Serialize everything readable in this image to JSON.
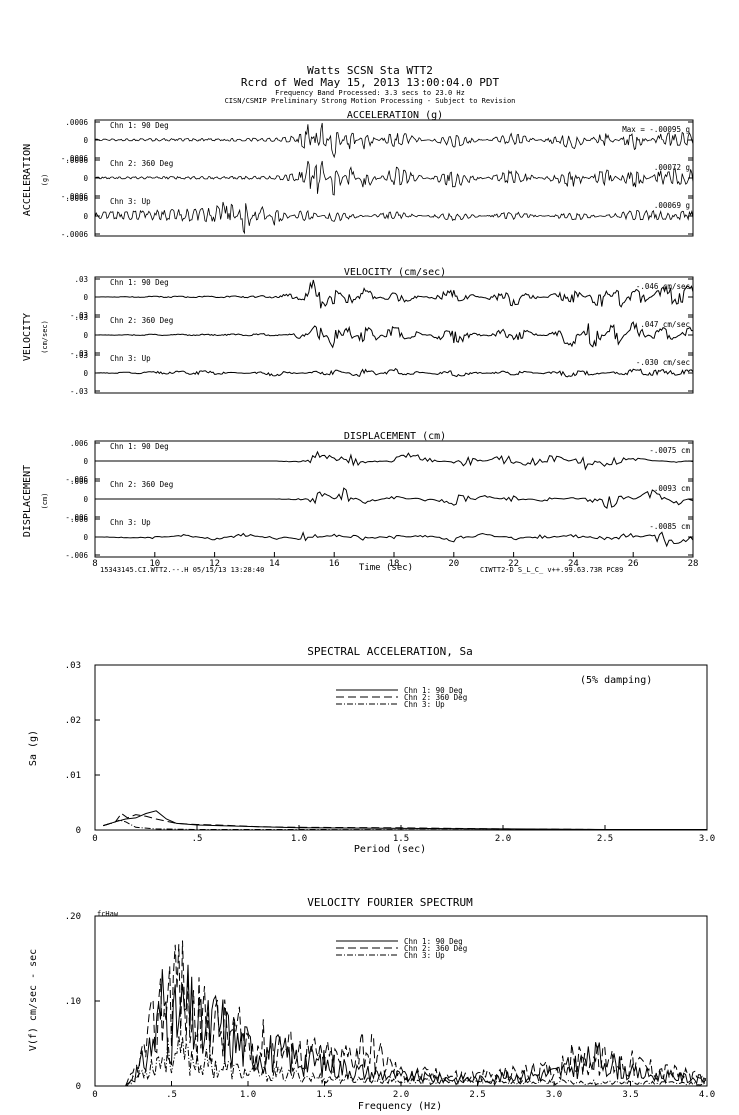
{
  "header": {
    "line1": "Watts    SCSN Sta WTT2",
    "line2": "Rcrd of Wed May 15, 2013 13:00:04.0 PDT",
    "line3": "Frequency Band Processed: 3.3 secs to 23.0 Hz",
    "line4": "CISN/CSMIP Preliminary Strong Motion Processing - Subject to Revision"
  },
  "timeseries": {
    "x_ticks": [
      "8",
      "10",
      "12",
      "14",
      "16",
      "18",
      "20",
      "22",
      "24",
      "26",
      "28"
    ],
    "x_label": "Time (sec)",
    "footer_left": "15343145.CI.WTT2.--.H 05/15/13 13:28:40",
    "footer_right": "CIWTT2-D  S_L_C_  v++.99.63.73R PC89",
    "panels": [
      {
        "title": "ACCELERATION (g)",
        "ylabel": "ACCELERATION",
        "units": "(g)",
        "channels": [
          {
            "name": "Chn 1: 90 Deg",
            "ticks": [
              ".0006",
              "0",
              "-.0006"
            ],
            "peak": "Max =  -.00095   g"
          },
          {
            "name": "Chn 2: 360 Deg",
            "ticks": [
              ".0006",
              "0",
              "-.0006"
            ],
            "peak": ".00072   g"
          },
          {
            "name": "Chn 3: Up",
            "ticks": [
              ".0006",
              "0",
              "-.0006"
            ],
            "peak": ".00069   g"
          }
        ]
      },
      {
        "title": "VELOCITY (cm/sec)",
        "ylabel": "VELOCITY",
        "units": "(cm/sec)",
        "channels": [
          {
            "name": "Chn 1: 90 Deg",
            "ticks": [
              ".03",
              "0",
              "-.03"
            ],
            "peak": "-.046   cm/sec"
          },
          {
            "name": "Chn 2: 360 Deg",
            "ticks": [
              ".03",
              "0",
              "-.03"
            ],
            "peak": ".047   cm/sec"
          },
          {
            "name": "Chn 3: Up",
            "ticks": [
              ".03",
              "0",
              "-.03"
            ],
            "peak": "-.030   cm/sec"
          }
        ]
      },
      {
        "title": "DISPLACEMENT (cm)",
        "ylabel": "DISPLACEMENT",
        "units": "(cm)",
        "channels": [
          {
            "name": "Chn 1: 90 Deg",
            "ticks": [
              ".006",
              "0",
              "-.006"
            ],
            "peak": "-.0075   cm"
          },
          {
            "name": "Chn 2: 360 Deg",
            "ticks": [
              ".006",
              "0",
              "-.006"
            ],
            "peak": ".0093   cm"
          },
          {
            "name": "Chn 3: Up",
            "ticks": [
              ".006",
              "0",
              "-.006"
            ],
            "peak": "-.0085   cm"
          }
        ]
      }
    ]
  },
  "spectral": {
    "title": "SPECTRAL ACCELERATION, Sa",
    "ylabel": "Sa (g)",
    "xlabel": "Period (sec)",
    "note": "(5% damping)",
    "x_ticks": [
      "0",
      ".5",
      "1.0",
      "1.5",
      "2.0",
      "2.5",
      "3.0"
    ],
    "y_ticks": [
      "0",
      ".01",
      ".02",
      ".03"
    ],
    "legend": [
      "Chn 1: 90 Deg",
      "Chn 2: 360 Deg",
      "Chn 3: Up"
    ]
  },
  "fourier": {
    "title": "VELOCITY FOURIER SPECTRUM",
    "ylabel": "V(f)   cm/sec - sec",
    "xlabel": "Frequency (Hz)",
    "corner_label": "fcHaw",
    "x_ticks": [
      "0",
      ".5",
      "1.0",
      "1.5",
      "2.0",
      "2.5",
      "3.0",
      "3.5",
      "4.0"
    ],
    "y_ticks": [
      "0",
      ".10",
      ".20"
    ],
    "legend": [
      "Chn 1: 90 Deg",
      "Chn 2: 360 Deg",
      "Chn 3: Up"
    ]
  },
  "chart_data": [
    {
      "type": "line",
      "title": "ACCELERATION (g)",
      "xlabel": "Time (sec)",
      "xlim": [
        8,
        28
      ],
      "ylim": [
        -0.0006,
        0.0006
      ],
      "series": [
        {
          "name": "Chn 1: 90 Deg",
          "x": [
            8,
            10,
            12,
            14,
            14.8,
            15.2,
            15.4,
            15.6,
            16,
            16.5,
            17,
            18,
            20,
            22,
            24,
            25,
            26,
            27,
            28
          ],
          "y": [
            2e-05,
            3e-05,
            3e-05,
            4e-05,
            0.0001,
            0.0004,
            -0.0005,
            0.00045,
            -0.0004,
            0.0003,
            -0.0002,
            0.0002,
            -0.00015,
            0.00015,
            -0.0002,
            0.0002,
            -0.00022,
            0.00018,
            0.00015
          ]
        },
        {
          "name": "Chn 2: 360 Deg",
          "x": [
            8,
            10,
            12,
            14,
            14.8,
            15.2,
            15.4,
            15.6,
            16,
            16.5,
            17,
            18,
            20,
            22,
            24,
            25,
            26,
            27,
            28
          ],
          "y": [
            2e-05,
            3e-05,
            3e-05,
            4e-05,
            0.0001,
            0.00045,
            -0.00055,
            0.0005,
            -0.00045,
            0.0003,
            -0.00025,
            0.00025,
            -0.0002,
            0.00018,
            -0.00022,
            0.00024,
            -0.00026,
            0.00022,
            0.00018
          ]
        },
        {
          "name": "Chn 3: Up",
          "x": [
            8,
            10,
            12,
            12.5,
            13,
            13.5,
            14,
            15,
            16,
            18,
            20,
            22,
            24,
            26,
            28
          ],
          "y": [
            8e-05,
            0.00012,
            0.00018,
            0.0004,
            -0.00045,
            0.0003,
            -0.0002,
            0.00015,
            -0.00012,
            0.0001,
            -0.0001,
            0.0001,
            -0.0001,
            0.00012,
            0.0001
          ]
        }
      ]
    },
    {
      "type": "line",
      "title": "VELOCITY (cm/sec)",
      "xlabel": "Time (sec)",
      "xlim": [
        8,
        28
      ],
      "ylim": [
        -0.03,
        0.03
      ],
      "series": [
        {
          "name": "Chn 1: 90 Deg",
          "x": [
            8,
            10,
            12,
            14,
            15,
            15.3,
            15.6,
            16,
            16.5,
            17,
            18,
            20,
            22,
            24,
            25,
            25.6,
            26,
            27,
            28
          ],
          "y": [
            0,
            0.001,
            0.001,
            0.002,
            0.006,
            0.025,
            -0.028,
            0.02,
            -0.015,
            0.012,
            -0.01,
            0.01,
            -0.012,
            0.012,
            -0.02,
            0.024,
            -0.02,
            0.015,
            0.014
          ]
        },
        {
          "name": "Chn 2: 360 Deg",
          "x": [
            8,
            10,
            12,
            14,
            15,
            15.5,
            16,
            16.5,
            17,
            18,
            20,
            22,
            24,
            24.7,
            25.3,
            26,
            27,
            28
          ],
          "y": [
            0,
            0.001,
            0.001,
            0.002,
            -0.006,
            0.02,
            -0.022,
            0.018,
            -0.02,
            0.014,
            -0.012,
            0.012,
            -0.015,
            0.028,
            -0.024,
            0.018,
            -0.016,
            0.014
          ]
        },
        {
          "name": "Chn 3: Up",
          "x": [
            8,
            10,
            12,
            14,
            16,
            17,
            18,
            20,
            22,
            24,
            26,
            28
          ],
          "y": [
            0,
            0.002,
            0.003,
            -0.004,
            0.005,
            -0.008,
            0.006,
            -0.005,
            0.004,
            -0.006,
            0.005,
            0.004
          ]
        }
      ]
    },
    {
      "type": "line",
      "title": "DISPLACEMENT (cm)",
      "xlabel": "Time (sec)",
      "xlim": [
        8,
        28
      ],
      "ylim": [
        -0.006,
        0.006
      ],
      "series": [
        {
          "name": "Chn 1: 90 Deg",
          "x": [
            8,
            10,
            12,
            14,
            15,
            15.5,
            16,
            16.8,
            17.5,
            18.5,
            19.5,
            20.5,
            21.5,
            22.5,
            23.5,
            24.5,
            25,
            25.5,
            26.5,
            27.5,
            28
          ],
          "y": [
            0,
            0,
            0,
            0,
            -0.0005,
            0.0035,
            0.001,
            0.0025,
            -0.0005,
            0.0025,
            0.0005,
            -0.002,
            0.0015,
            0.0025,
            0.0015,
            -0.003,
            0.0035,
            0.0015,
            0.0005,
            -0.0005,
            0.0005
          ]
        },
        {
          "name": "Chn 2: 360 Deg",
          "x": [
            8,
            10,
            12,
            14,
            15,
            15.6,
            16.3,
            17,
            18,
            19,
            20,
            21,
            22,
            23,
            24,
            24.6,
            25.2,
            25.8,
            26.6,
            27.5,
            28
          ],
          "y": [
            0,
            0,
            0,
            0,
            0.0005,
            -0.0045,
            0.0035,
            -0.0015,
            0.001,
            -0.001,
            0.0035,
            -0.002,
            0.0015,
            -0.001,
            0.0005,
            -0.0015,
            0.006,
            -0.0015,
            0.003,
            -0.002,
            0.001
          ]
        },
        {
          "name": "Chn 3: Up",
          "x": [
            8,
            10,
            11,
            12,
            13,
            14,
            15,
            16,
            17,
            18,
            19,
            20,
            21,
            22,
            23,
            24,
            25,
            26,
            27,
            28
          ],
          "y": [
            0,
            -0.0005,
            0.0008,
            -0.001,
            0.0012,
            -0.001,
            0.002,
            -0.0015,
            0.0018,
            -0.0012,
            0.001,
            -0.0015,
            0.0012,
            -0.001,
            0.0012,
            -0.0015,
            0.0015,
            0.001,
            -0.003,
            -0.001
          ]
        }
      ]
    },
    {
      "type": "line",
      "title": "SPECTRAL ACCELERATION, Sa",
      "xlabel": "Period (sec)",
      "ylabel": "Sa (g)",
      "xlim": [
        0,
        3.0
      ],
      "ylim": [
        0,
        0.03
      ],
      "series": [
        {
          "name": "Chn 1: 90 Deg",
          "x": [
            0.04,
            0.1,
            0.15,
            0.2,
            0.25,
            0.3,
            0.35,
            0.4,
            0.5,
            0.6,
            0.8,
            1.0,
            1.5,
            2.0,
            2.5,
            3.0
          ],
          "y": [
            0.0008,
            0.0015,
            0.002,
            0.0022,
            0.003,
            0.0035,
            0.002,
            0.0012,
            0.0009,
            0.0008,
            0.0006,
            0.0004,
            0.0003,
            0.0002,
            0.0001,
            0.0001
          ]
        },
        {
          "name": "Chn 2: 360 Deg",
          "x": [
            0.04,
            0.1,
            0.13,
            0.16,
            0.2,
            0.25,
            0.3,
            0.4,
            0.5,
            0.6,
            0.8,
            1.0,
            1.5,
            2.0,
            2.5,
            3.0
          ],
          "y": [
            0.0008,
            0.0015,
            0.003,
            0.0022,
            0.0028,
            0.0025,
            0.002,
            0.0012,
            0.001,
            0.0009,
            0.0006,
            0.0005,
            0.0004,
            0.0002,
            0.0001,
            0.0001
          ]
        },
        {
          "name": "Chn 3: Up",
          "x": [
            0.04,
            0.08,
            0.12,
            0.15,
            0.2,
            0.3,
            0.5,
            1.0,
            1.5,
            2.0,
            3.0
          ],
          "y": [
            0.0008,
            0.0012,
            0.0018,
            0.0015,
            0.0005,
            0.0002,
            0.0001,
            0.0001,
            5e-05,
            5e-05,
            3e-05
          ]
        }
      ]
    },
    {
      "type": "line",
      "title": "VELOCITY FOURIER SPECTRUM",
      "xlabel": "Frequency (Hz)",
      "ylabel": "V(f)   cm/sec - sec",
      "xlim": [
        0,
        4.0
      ],
      "ylim": [
        0,
        0.2
      ],
      "series": [
        {
          "name": "Chn 1: 90 Deg",
          "x": [
            0.2,
            0.3,
            0.4,
            0.45,
            0.5,
            0.6,
            0.7,
            0.8,
            0.9,
            1.0,
            1.2,
            1.4,
            1.6,
            1.8,
            2.0,
            2.5,
            3.0,
            3.3,
            3.5,
            4.0
          ],
          "y": [
            0.0,
            0.03,
            0.08,
            0.14,
            0.09,
            0.12,
            0.08,
            0.1,
            0.07,
            0.06,
            0.05,
            0.04,
            0.03,
            0.02,
            0.015,
            0.01,
            0.02,
            0.045,
            0.02,
            0.01
          ]
        },
        {
          "name": "Chn 2: 360 Deg",
          "x": [
            0.2,
            0.3,
            0.4,
            0.5,
            0.55,
            0.6,
            0.7,
            0.8,
            0.9,
            1.0,
            1.2,
            1.4,
            1.6,
            1.75,
            2.0,
            2.5,
            3.0,
            3.1,
            3.4,
            4.0
          ],
          "y": [
            0.0,
            0.04,
            0.1,
            0.16,
            0.17,
            0.12,
            0.1,
            0.09,
            0.08,
            0.07,
            0.06,
            0.05,
            0.04,
            0.065,
            0.02,
            0.015,
            0.025,
            0.04,
            0.04,
            0.01
          ]
        },
        {
          "name": "Chn 3: Up",
          "x": [
            0.2,
            0.3,
            0.4,
            0.5,
            0.6,
            0.8,
            1.0,
            1.2,
            1.5,
            2.0,
            2.5,
            3.0,
            3.5,
            4.0
          ],
          "y": [
            0.0,
            0.02,
            0.04,
            0.05,
            0.045,
            0.03,
            0.02,
            0.018,
            0.012,
            0.008,
            0.006,
            0.006,
            0.005,
            0.004
          ]
        }
      ]
    }
  ]
}
